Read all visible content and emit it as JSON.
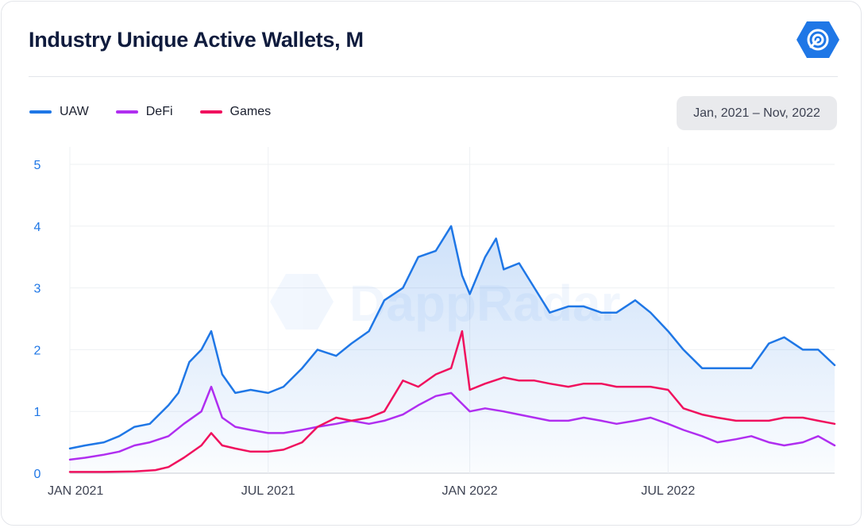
{
  "title": "Industry Unique Active Wallets, M",
  "date_range": "Jan, 2021 – Nov, 2022",
  "watermark": "DappRadar",
  "icons": {
    "logo": "dappradar-logo-icon"
  },
  "colors": {
    "UAW": "#1f77e6",
    "DeFi": "#b02ef0",
    "Games": "#f0115e"
  },
  "chart_data": {
    "type": "line",
    "title": "Industry Unique Active Wallets, M",
    "xlabel": "",
    "ylabel": "",
    "x_range": [
      "2021-01-01",
      "2022-11-30"
    ],
    "ylim": [
      0,
      5
    ],
    "y_ticks": [
      0,
      1,
      2,
      3,
      4,
      5
    ],
    "x_ticks": [
      {
        "label": "JAN 2021",
        "date": "2021-01-01"
      },
      {
        "label": "JUL 2021",
        "date": "2021-07-01"
      },
      {
        "label": "JAN 2022",
        "date": "2022-01-01"
      },
      {
        "label": "JUL 2022",
        "date": "2022-07-01"
      }
    ],
    "grid": true,
    "legend_position": "top-left",
    "series": [
      {
        "name": "UAW",
        "color": "#1f77e6",
        "area_fill": true,
        "points": [
          [
            "2021-01-01",
            0.4
          ],
          [
            "2021-01-15",
            0.45
          ],
          [
            "2021-02-01",
            0.5
          ],
          [
            "2021-02-15",
            0.6
          ],
          [
            "2021-03-01",
            0.75
          ],
          [
            "2021-03-15",
            0.8
          ],
          [
            "2021-04-01",
            1.1
          ],
          [
            "2021-04-10",
            1.3
          ],
          [
            "2021-04-20",
            1.8
          ],
          [
            "2021-05-01",
            2.0
          ],
          [
            "2021-05-10",
            2.3
          ],
          [
            "2021-05-20",
            1.6
          ],
          [
            "2021-06-01",
            1.3
          ],
          [
            "2021-06-15",
            1.35
          ],
          [
            "2021-07-01",
            1.3
          ],
          [
            "2021-07-15",
            1.4
          ],
          [
            "2021-08-01",
            1.7
          ],
          [
            "2021-08-15",
            2.0
          ],
          [
            "2021-09-01",
            1.9
          ],
          [
            "2021-09-15",
            2.1
          ],
          [
            "2021-10-01",
            2.3
          ],
          [
            "2021-10-15",
            2.8
          ],
          [
            "2021-11-01",
            3.0
          ],
          [
            "2021-11-15",
            3.5
          ],
          [
            "2021-12-01",
            3.6
          ],
          [
            "2021-12-15",
            4.0
          ],
          [
            "2021-12-25",
            3.2
          ],
          [
            "2022-01-01",
            2.9
          ],
          [
            "2022-01-15",
            3.5
          ],
          [
            "2022-01-25",
            3.8
          ],
          [
            "2022-02-01",
            3.3
          ],
          [
            "2022-02-15",
            3.4
          ],
          [
            "2022-03-01",
            3.0
          ],
          [
            "2022-03-15",
            2.6
          ],
          [
            "2022-04-01",
            2.7
          ],
          [
            "2022-04-15",
            2.7
          ],
          [
            "2022-05-01",
            2.6
          ],
          [
            "2022-05-15",
            2.6
          ],
          [
            "2022-06-01",
            2.8
          ],
          [
            "2022-06-15",
            2.6
          ],
          [
            "2022-07-01",
            2.3
          ],
          [
            "2022-07-15",
            2.0
          ],
          [
            "2022-08-01",
            1.7
          ],
          [
            "2022-08-15",
            1.7
          ],
          [
            "2022-09-01",
            1.7
          ],
          [
            "2022-09-15",
            1.7
          ],
          [
            "2022-10-01",
            2.1
          ],
          [
            "2022-10-15",
            2.2
          ],
          [
            "2022-11-01",
            2.0
          ],
          [
            "2022-11-15",
            2.0
          ],
          [
            "2022-11-30",
            1.75
          ]
        ]
      },
      {
        "name": "DeFi",
        "color": "#b02ef0",
        "points": [
          [
            "2021-01-01",
            0.22
          ],
          [
            "2021-01-15",
            0.25
          ],
          [
            "2021-02-01",
            0.3
          ],
          [
            "2021-02-15",
            0.35
          ],
          [
            "2021-03-01",
            0.45
          ],
          [
            "2021-03-15",
            0.5
          ],
          [
            "2021-04-01",
            0.6
          ],
          [
            "2021-04-15",
            0.8
          ],
          [
            "2021-05-01",
            1.0
          ],
          [
            "2021-05-10",
            1.4
          ],
          [
            "2021-05-20",
            0.9
          ],
          [
            "2021-06-01",
            0.75
          ],
          [
            "2021-06-15",
            0.7
          ],
          [
            "2021-07-01",
            0.65
          ],
          [
            "2021-07-15",
            0.65
          ],
          [
            "2021-08-01",
            0.7
          ],
          [
            "2021-08-15",
            0.75
          ],
          [
            "2021-09-01",
            0.8
          ],
          [
            "2021-09-15",
            0.85
          ],
          [
            "2021-10-01",
            0.8
          ],
          [
            "2021-10-15",
            0.85
          ],
          [
            "2021-11-01",
            0.95
          ],
          [
            "2021-11-15",
            1.1
          ],
          [
            "2021-12-01",
            1.25
          ],
          [
            "2021-12-15",
            1.3
          ],
          [
            "2022-01-01",
            1.0
          ],
          [
            "2022-01-15",
            1.05
          ],
          [
            "2022-02-01",
            1.0
          ],
          [
            "2022-02-15",
            0.95
          ],
          [
            "2022-03-01",
            0.9
          ],
          [
            "2022-03-15",
            0.85
          ],
          [
            "2022-04-01",
            0.85
          ],
          [
            "2022-04-15",
            0.9
          ],
          [
            "2022-05-01",
            0.85
          ],
          [
            "2022-05-15",
            0.8
          ],
          [
            "2022-06-01",
            0.85
          ],
          [
            "2022-06-15",
            0.9
          ],
          [
            "2022-07-01",
            0.8
          ],
          [
            "2022-07-15",
            0.7
          ],
          [
            "2022-08-01",
            0.6
          ],
          [
            "2022-08-15",
            0.5
          ],
          [
            "2022-09-01",
            0.55
          ],
          [
            "2022-09-15",
            0.6
          ],
          [
            "2022-10-01",
            0.5
          ],
          [
            "2022-10-15",
            0.45
          ],
          [
            "2022-11-01",
            0.5
          ],
          [
            "2022-11-15",
            0.6
          ],
          [
            "2022-11-30",
            0.45
          ]
        ]
      },
      {
        "name": "Games",
        "color": "#f0115e",
        "points": [
          [
            "2021-01-01",
            0.02
          ],
          [
            "2021-02-01",
            0.02
          ],
          [
            "2021-03-01",
            0.03
          ],
          [
            "2021-03-20",
            0.05
          ],
          [
            "2021-04-01",
            0.1
          ],
          [
            "2021-04-15",
            0.25
          ],
          [
            "2021-05-01",
            0.45
          ],
          [
            "2021-05-10",
            0.65
          ],
          [
            "2021-05-20",
            0.45
          ],
          [
            "2021-06-01",
            0.4
          ],
          [
            "2021-06-15",
            0.35
          ],
          [
            "2021-07-01",
            0.35
          ],
          [
            "2021-07-15",
            0.38
          ],
          [
            "2021-08-01",
            0.5
          ],
          [
            "2021-08-15",
            0.75
          ],
          [
            "2021-09-01",
            0.9
          ],
          [
            "2021-09-15",
            0.85
          ],
          [
            "2021-10-01",
            0.9
          ],
          [
            "2021-10-15",
            1.0
          ],
          [
            "2021-11-01",
            1.5
          ],
          [
            "2021-11-15",
            1.4
          ],
          [
            "2021-12-01",
            1.6
          ],
          [
            "2021-12-15",
            1.7
          ],
          [
            "2021-12-25",
            2.3
          ],
          [
            "2022-01-01",
            1.35
          ],
          [
            "2022-01-15",
            1.45
          ],
          [
            "2022-02-01",
            1.55
          ],
          [
            "2022-02-15",
            1.5
          ],
          [
            "2022-03-01",
            1.5
          ],
          [
            "2022-03-15",
            1.45
          ],
          [
            "2022-04-01",
            1.4
          ],
          [
            "2022-04-15",
            1.45
          ],
          [
            "2022-05-01",
            1.45
          ],
          [
            "2022-05-15",
            1.4
          ],
          [
            "2022-06-01",
            1.4
          ],
          [
            "2022-06-15",
            1.4
          ],
          [
            "2022-07-01",
            1.35
          ],
          [
            "2022-07-15",
            1.05
          ],
          [
            "2022-08-01",
            0.95
          ],
          [
            "2022-08-15",
            0.9
          ],
          [
            "2022-09-01",
            0.85
          ],
          [
            "2022-09-15",
            0.85
          ],
          [
            "2022-10-01",
            0.85
          ],
          [
            "2022-10-15",
            0.9
          ],
          [
            "2022-11-01",
            0.9
          ],
          [
            "2022-11-15",
            0.85
          ],
          [
            "2022-11-30",
            0.8
          ]
        ]
      }
    ]
  }
}
